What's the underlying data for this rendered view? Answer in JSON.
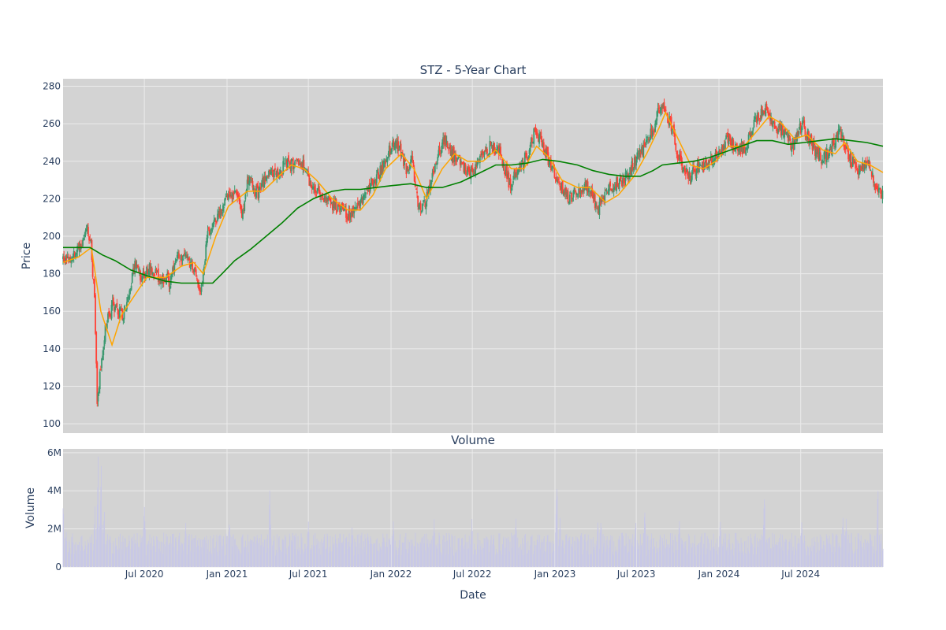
{
  "colors": {
    "plot_bg": "#d3d3d3",
    "grid": "#ebebeb",
    "up": "#3d9970",
    "down": "#ff4136",
    "ma_short": "#ffa500",
    "ma_long": "#008000",
    "volume_bar": "#c8c8e6",
    "text": "#2a3f5f"
  },
  "chart_data": [
    {
      "type": "candlestick",
      "title": "STZ - 5-Year Chart",
      "xlabel": "",
      "ylabel": "Price",
      "xlim": [
        "2020-01-02",
        "2024-12-31"
      ],
      "ylim": [
        95,
        284
      ],
      "yticks": [
        100,
        120,
        140,
        160,
        180,
        200,
        220,
        240,
        260,
        280
      ],
      "grid": true,
      "series": [
        {
          "kind": "ohlc",
          "close_points": [
            [
              "2020-01-02",
              188
            ],
            [
              "2020-01-21",
              190
            ],
            [
              "2020-02-10",
              194
            ],
            [
              "2020-02-24",
              206
            ],
            [
              "2020-03-05",
              194
            ],
            [
              "2020-03-12",
              165
            ],
            [
              "2020-03-18",
              112
            ],
            [
              "2020-03-25",
              128
            ],
            [
              "2020-04-08",
              155
            ],
            [
              "2020-04-22",
              163
            ],
            [
              "2020-05-13",
              158
            ],
            [
              "2020-05-27",
              168
            ],
            [
              "2020-06-10",
              186
            ],
            [
              "2020-06-24",
              177
            ],
            [
              "2020-07-15",
              183
            ],
            [
              "2020-08-05",
              178
            ],
            [
              "2020-08-26",
              176
            ],
            [
              "2020-09-16",
              190
            ],
            [
              "2020-10-07",
              186
            ],
            [
              "2020-10-21",
              183
            ],
            [
              "2020-11-04",
              170
            ],
            [
              "2020-11-18",
              200
            ],
            [
              "2020-12-02",
              208
            ],
            [
              "2020-12-23",
              216
            ],
            [
              "2021-01-07",
              224
            ],
            [
              "2021-01-21",
              222
            ],
            [
              "2021-02-04",
              210
            ],
            [
              "2021-02-18",
              232
            ],
            [
              "2021-03-11",
              222
            ],
            [
              "2021-04-01",
              234
            ],
            [
              "2021-04-22",
              232
            ],
            [
              "2021-05-13",
              240
            ],
            [
              "2021-06-03",
              238
            ],
            [
              "2021-06-24",
              238
            ],
            [
              "2021-07-08",
              226
            ],
            [
              "2021-07-29",
              222
            ],
            [
              "2021-08-19",
              218
            ],
            [
              "2021-09-09",
              214
            ],
            [
              "2021-09-30",
              212
            ],
            [
              "2021-10-21",
              216
            ],
            [
              "2021-11-11",
              226
            ],
            [
              "2021-12-02",
              232
            ],
            [
              "2021-12-23",
              243
            ],
            [
              "2022-01-13",
              251
            ],
            [
              "2022-02-03",
              236
            ],
            [
              "2022-02-17",
              240
            ],
            [
              "2022-03-03",
              215
            ],
            [
              "2022-03-17",
              218
            ],
            [
              "2022-04-07",
              234
            ],
            [
              "2022-04-28",
              252
            ],
            [
              "2022-05-19",
              243
            ],
            [
              "2022-06-09",
              238
            ],
            [
              "2022-06-30",
              234
            ],
            [
              "2022-07-21",
              242
            ],
            [
              "2022-08-11",
              248
            ],
            [
              "2022-09-01",
              245
            ],
            [
              "2022-09-22",
              227
            ],
            [
              "2022-10-13",
              238
            ],
            [
              "2022-11-03",
              244
            ],
            [
              "2022-11-17",
              257
            ],
            [
              "2022-12-08",
              246
            ],
            [
              "2022-12-29",
              235
            ],
            [
              "2023-01-12",
              228
            ],
            [
              "2023-02-02",
              220
            ],
            [
              "2023-02-23",
              226
            ],
            [
              "2023-03-16",
              226
            ],
            [
              "2023-04-06",
              214
            ],
            [
              "2023-04-27",
              224
            ],
            [
              "2023-05-18",
              228
            ],
            [
              "2023-06-08",
              232
            ],
            [
              "2023-06-29",
              240
            ],
            [
              "2023-07-20",
              248
            ],
            [
              "2023-08-10",
              258
            ],
            [
              "2023-08-24",
              270
            ],
            [
              "2023-09-14",
              262
            ],
            [
              "2023-10-05",
              240
            ],
            [
              "2023-10-26",
              232
            ],
            [
              "2023-11-16",
              236
            ],
            [
              "2023-12-07",
              238
            ],
            [
              "2023-12-28",
              242
            ],
            [
              "2024-01-18",
              252
            ],
            [
              "2024-02-08",
              248
            ],
            [
              "2024-02-29",
              246
            ],
            [
              "2024-03-21",
              262
            ],
            [
              "2024-04-11",
              269
            ],
            [
              "2024-05-02",
              260
            ],
            [
              "2024-05-23",
              255
            ],
            [
              "2024-06-13",
              248
            ],
            [
              "2024-07-04",
              260
            ],
            [
              "2024-07-25",
              250
            ],
            [
              "2024-08-15",
              240
            ],
            [
              "2024-09-05",
              246
            ],
            [
              "2024-09-26",
              256
            ],
            [
              "2024-10-17",
              242
            ],
            [
              "2024-11-07",
              236
            ],
            [
              "2024-11-28",
              240
            ],
            [
              "2024-12-12",
              228
            ],
            [
              "2024-12-31",
              221
            ]
          ]
        },
        {
          "kind": "line",
          "color": "#ffa500",
          "points": [
            [
              "2020-01-02",
              186
            ],
            [
              "2020-02-06",
              189
            ],
            [
              "2020-03-05",
              194
            ],
            [
              "2020-03-26",
              160
            ],
            [
              "2020-04-20",
              142
            ],
            [
              "2020-05-11",
              158
            ],
            [
              "2020-06-08",
              168
            ],
            [
              "2020-07-06",
              178
            ],
            [
              "2020-08-17",
              178
            ],
            [
              "2020-09-21",
              184
            ],
            [
              "2020-10-19",
              186
            ],
            [
              "2020-11-09",
              180
            ],
            [
              "2020-12-07",
              200
            ],
            [
              "2021-01-04",
              216
            ],
            [
              "2021-02-15",
              224
            ],
            [
              "2021-03-22",
              224
            ],
            [
              "2021-04-26",
              232
            ],
            [
              "2021-05-24",
              238
            ],
            [
              "2021-06-21",
              236
            ],
            [
              "2021-07-19",
              230
            ],
            [
              "2021-08-23",
              220
            ],
            [
              "2021-09-27",
              214
            ],
            [
              "2021-10-25",
              214
            ],
            [
              "2021-11-22",
              222
            ],
            [
              "2021-12-20",
              236
            ],
            [
              "2022-01-24",
              244
            ],
            [
              "2022-02-21",
              236
            ],
            [
              "2022-03-21",
              220
            ],
            [
              "2022-04-25",
              236
            ],
            [
              "2022-05-23",
              244
            ],
            [
              "2022-06-20",
              240
            ],
            [
              "2022-07-25",
              240
            ],
            [
              "2022-08-22",
              246
            ],
            [
              "2022-09-26",
              236
            ],
            [
              "2022-10-24",
              236
            ],
            [
              "2022-11-21",
              248
            ],
            [
              "2022-12-19",
              242
            ],
            [
              "2023-01-16",
              230
            ],
            [
              "2023-02-20",
              226
            ],
            [
              "2023-03-20",
              226
            ],
            [
              "2023-04-24",
              218
            ],
            [
              "2023-05-22",
              222
            ],
            [
              "2023-06-26",
              232
            ],
            [
              "2023-07-24",
              244
            ],
            [
              "2023-08-21",
              258
            ],
            [
              "2023-09-04",
              266
            ],
            [
              "2023-10-02",
              252
            ],
            [
              "2023-10-30",
              238
            ],
            [
              "2023-11-27",
              236
            ],
            [
              "2023-12-25",
              240
            ],
            [
              "2024-01-22",
              248
            ],
            [
              "2024-02-26",
              248
            ],
            [
              "2024-03-25",
              256
            ],
            [
              "2024-04-22",
              264
            ],
            [
              "2024-05-20",
              260
            ],
            [
              "2024-06-17",
              252
            ],
            [
              "2024-07-15",
              254
            ],
            [
              "2024-08-19",
              246
            ],
            [
              "2024-09-16",
              244
            ],
            [
              "2024-10-07",
              250
            ],
            [
              "2024-11-04",
              240
            ],
            [
              "2024-12-02",
              238
            ],
            [
              "2024-12-31",
              234
            ]
          ]
        },
        {
          "kind": "line",
          "color": "#008000",
          "points": [
            [
              "2020-01-02",
              194
            ],
            [
              "2020-03-02",
              194
            ],
            [
              "2020-03-30",
              190
            ],
            [
              "2020-04-27",
              187
            ],
            [
              "2020-06-01",
              182
            ],
            [
              "2020-07-06",
              179
            ],
            [
              "2020-08-17",
              176
            ],
            [
              "2020-09-21",
              175
            ],
            [
              "2020-10-26",
              175
            ],
            [
              "2020-11-30",
              175
            ],
            [
              "2020-12-21",
              180
            ],
            [
              "2021-01-18",
              187
            ],
            [
              "2021-02-22",
              193
            ],
            [
              "2021-03-29",
              200
            ],
            [
              "2021-05-03",
              207
            ],
            [
              "2021-06-07",
              215
            ],
            [
              "2021-07-12",
              220
            ],
            [
              "2021-08-23",
              224
            ],
            [
              "2021-09-20",
              225
            ],
            [
              "2021-10-25",
              225
            ],
            [
              "2021-11-29",
              226
            ],
            [
              "2022-01-03",
              227
            ],
            [
              "2022-02-14",
              228
            ],
            [
              "2022-03-21",
              226
            ],
            [
              "2022-04-25",
              226
            ],
            [
              "2022-06-06",
              229
            ],
            [
              "2022-07-11",
              233
            ],
            [
              "2022-08-22",
              238
            ],
            [
              "2022-09-26",
              238
            ],
            [
              "2022-10-31",
              239
            ],
            [
              "2022-12-05",
              241
            ],
            [
              "2023-01-09",
              240
            ],
            [
              "2023-02-20",
              238
            ],
            [
              "2023-03-27",
              235
            ],
            [
              "2023-05-01",
              233
            ],
            [
              "2023-06-05",
              232
            ],
            [
              "2023-07-10",
              232
            ],
            [
              "2023-08-07",
              235
            ],
            [
              "2023-08-28",
              238
            ],
            [
              "2023-10-02",
              239
            ],
            [
              "2023-11-06",
              240
            ],
            [
              "2023-12-11",
              242
            ],
            [
              "2024-01-15",
              245
            ],
            [
              "2024-02-19",
              248
            ],
            [
              "2024-03-25",
              251
            ],
            [
              "2024-04-29",
              251
            ],
            [
              "2024-06-03",
              249
            ],
            [
              "2024-07-08",
              250
            ],
            [
              "2024-08-12",
              251
            ],
            [
              "2024-09-16",
              252
            ],
            [
              "2024-10-21",
              251
            ],
            [
              "2024-11-25",
              250
            ],
            [
              "2024-12-31",
              248
            ]
          ]
        }
      ]
    },
    {
      "type": "bar",
      "title": "Volume",
      "xlabel": "Date",
      "ylabel": "Volume",
      "xlim": [
        "2020-01-02",
        "2024-12-31"
      ],
      "ylim": [
        0,
        6200000
      ],
      "yticks": [
        0,
        2000000,
        4000000,
        6000000
      ],
      "ytick_labels": [
        "0",
        "2M",
        "4M",
        "6M"
      ],
      "xticks": [
        "2020-07-01",
        "2021-01-01",
        "2021-07-01",
        "2022-01-01",
        "2022-07-01",
        "2023-01-01",
        "2023-07-01",
        "2024-01-01",
        "2024-07-01"
      ],
      "xtick_labels": [
        "Jul 2020",
        "Jan 2021",
        "Jul 2021",
        "Jan 2022",
        "Jul 2022",
        "Jan 2023",
        "Jul 2023",
        "Jan 2024",
        "Jul 2024"
      ],
      "grid": true,
      "spikes": [
        [
          "2020-01-02",
          3600000
        ],
        [
          "2020-01-09",
          2000000
        ],
        [
          "2020-03-13",
          3300000
        ],
        [
          "2020-03-20",
          5900000
        ],
        [
          "2020-03-27",
          5900000
        ],
        [
          "2020-04-03",
          3300000
        ],
        [
          "2020-07-01",
          3500000
        ],
        [
          "2020-10-01",
          2500000
        ],
        [
          "2021-01-06",
          2600000
        ],
        [
          "2021-04-06",
          4300000
        ],
        [
          "2021-06-30",
          2000000
        ],
        [
          "2021-07-01",
          2600000
        ],
        [
          "2021-10-06",
          2100000
        ],
        [
          "2022-01-06",
          2500000
        ],
        [
          "2022-04-07",
          2600000
        ],
        [
          "2022-06-30",
          2600000
        ],
        [
          "2022-10-06",
          2600000
        ],
        [
          "2023-01-05",
          4700000
        ],
        [
          "2023-01-12",
          2800000
        ],
        [
          "2023-04-06",
          2600000
        ],
        [
          "2023-04-13",
          2600000
        ],
        [
          "2023-06-30",
          2700000
        ],
        [
          "2023-07-20",
          3300000
        ],
        [
          "2023-10-05",
          2600000
        ],
        [
          "2024-01-04",
          2700000
        ],
        [
          "2024-04-11",
          4100000
        ],
        [
          "2024-07-03",
          2600000
        ],
        [
          "2024-10-03",
          2700000
        ],
        [
          "2024-10-10",
          2600000
        ],
        [
          "2024-12-20",
          4500000
        ]
      ],
      "typical_range": [
        600000,
        1800000
      ]
    }
  ]
}
